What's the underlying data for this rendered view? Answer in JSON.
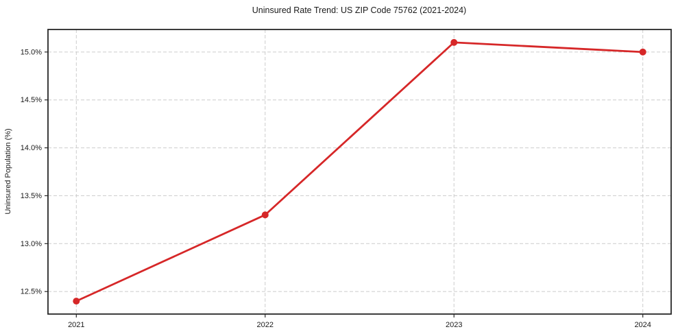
{
  "chart_data": {
    "type": "line",
    "title": "Uninsured Rate Trend: US ZIP Code 75762 (2021-2024)",
    "xlabel": "",
    "ylabel": "Uninsured Population (%)",
    "x": [
      2021,
      2022,
      2023,
      2024
    ],
    "series": [
      {
        "values": [
          12.4,
          13.3,
          15.1,
          15.0
        ]
      }
    ],
    "xticks": [
      {
        "v": 2021,
        "label": "2021"
      },
      {
        "v": 2022,
        "label": "2022"
      },
      {
        "v": 2023,
        "label": "2023"
      },
      {
        "v": 2024,
        "label": "2024"
      }
    ],
    "yticks": [
      {
        "v": 12.5,
        "label": "12.5%"
      },
      {
        "v": 13.0,
        "label": "13.0%"
      },
      {
        "v": 13.5,
        "label": "13.5%"
      },
      {
        "v": 14.0,
        "label": "14.0%"
      },
      {
        "v": 14.5,
        "label": "14.5%"
      },
      {
        "v": 15.0,
        "label": "15.0%"
      }
    ],
    "xlim": [
      2020.85,
      2024.15
    ],
    "ylim": [
      12.265,
      15.235
    ],
    "grid": true,
    "grid_style": "dashed",
    "legend_position": "none",
    "colors": {
      "line": "#d62728",
      "marker": "#d62728",
      "grid": "#cccccc",
      "spine": "#262626",
      "tick": "#262626",
      "text": "#1a1a1a",
      "background": "#ffffff"
    }
  }
}
